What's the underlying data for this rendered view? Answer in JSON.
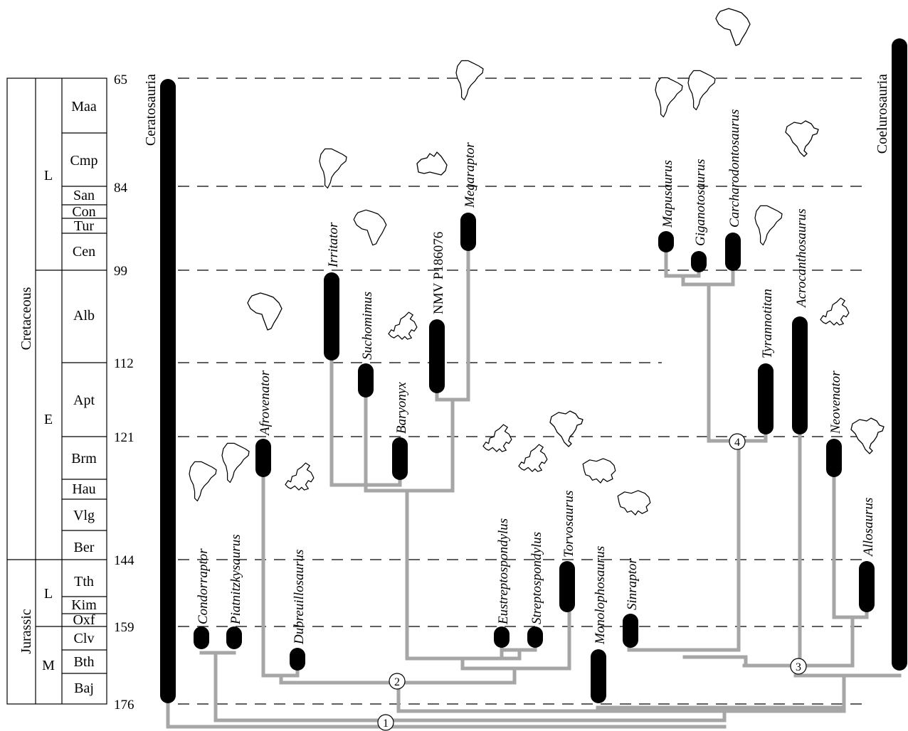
{
  "time_scale": {
    "ticks": [
      "65",
      "84",
      "99",
      "112",
      "121",
      "144",
      "159",
      "176"
    ],
    "periods": [
      "Cretaceous",
      "Jurassic"
    ],
    "epochs": [
      "L",
      "E",
      "L",
      "M"
    ],
    "stages": [
      "Maa",
      "Cmp",
      "San",
      "Con",
      "Tur",
      "Cen",
      "Alb",
      "Apt",
      "Brm",
      "Hau",
      "Vlg",
      "Ber",
      "Tth",
      "Kim",
      "Oxf",
      "Clv",
      "Bth",
      "Baj"
    ]
  },
  "groups": {
    "ceratosauria": "Ceratosauria",
    "coelurosauria": "Coelurosauria"
  },
  "taxa": {
    "condorraptor": "Condorraptor",
    "piatnitzkysaurus": "Piatnitzkysaurus",
    "afrovenator": "Afrovenator",
    "dubreuillosaurus": "Dubreuillosaurus",
    "irritator": "Irritator",
    "suchomimus": "Suchomimus",
    "baryonyx": "Baryonyx",
    "nmv": "NMV P186076",
    "megaraptor": "Megaraptor",
    "eustreptospondylus": "Eustreptospondylus",
    "streptospondylus": "Streptospondylus",
    "torvosaurus": "Torvosaurus",
    "monolophosaurus": "Monolophosaurus",
    "sinraptor": "Sinraptor",
    "mapusaurus": "Mapusaurus",
    "giganotosaurus": "Giganotosaurus",
    "carcharodontosaurus": "Carcharodontosaurus",
    "tyrannotitan": "Tyrannotitan",
    "acrocanthosaurus": "Acrocanthosaurus",
    "neovenator": "Neovenator",
    "allosaurus": "Allosaurus"
  },
  "nodes": [
    "1",
    "2",
    "3",
    "4"
  ],
  "map_icons": [
    "south-america",
    "africa",
    "europe",
    "australia",
    "north-america",
    "asia"
  ],
  "colors": {
    "range_bar": "#000000",
    "branch": "#a6a6a6",
    "gridline": "#000000"
  }
}
